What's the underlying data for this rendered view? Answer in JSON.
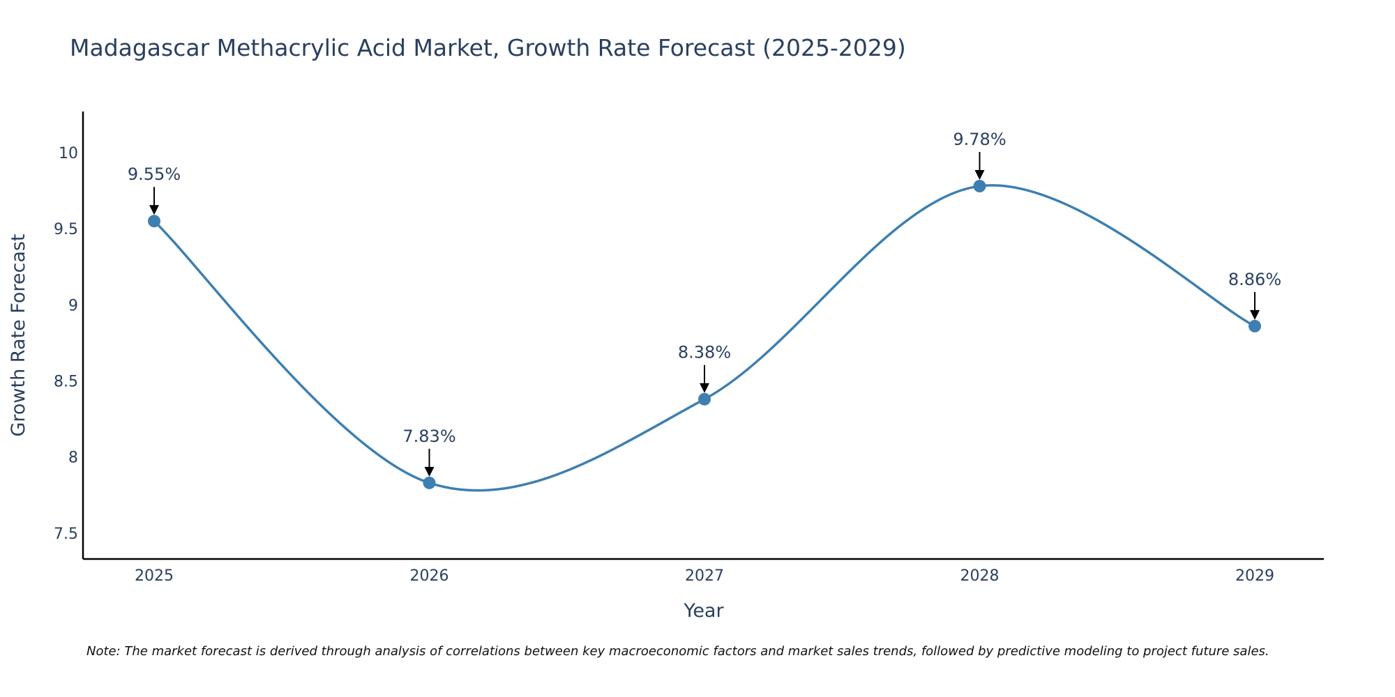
{
  "chart_data": {
    "type": "line",
    "title": "Madagascar Methacrylic Acid Market, Growth Rate Forecast (2025-2029)",
    "xlabel": "Year",
    "ylabel": "Growth Rate Forecast",
    "categories": [
      "2025",
      "2026",
      "2027",
      "2028",
      "2029"
    ],
    "values": [
      9.55,
      7.83,
      8.38,
      9.78,
      8.86
    ],
    "data_labels": [
      "9.55%",
      "7.83%",
      "8.38%",
      "9.78%",
      "8.86%"
    ],
    "yticks": [
      7.5,
      8,
      8.5,
      9,
      9.5,
      10
    ],
    "ytick_labels": [
      "7.5",
      "8",
      "8.5",
      "9",
      "9.5",
      "10"
    ],
    "ylim": [
      7.33,
      10.27
    ],
    "grid": false,
    "smoothing": "spline",
    "line_color": "#3d7fb0",
    "marker_color": "#3d7fb0",
    "arrow_color": "#000000",
    "axis_color": "#000000",
    "note": "Note: The market forecast is derived through analysis of correlations between key macroeconomic factors and market sales trends, followed by predictive modeling to project future sales."
  }
}
